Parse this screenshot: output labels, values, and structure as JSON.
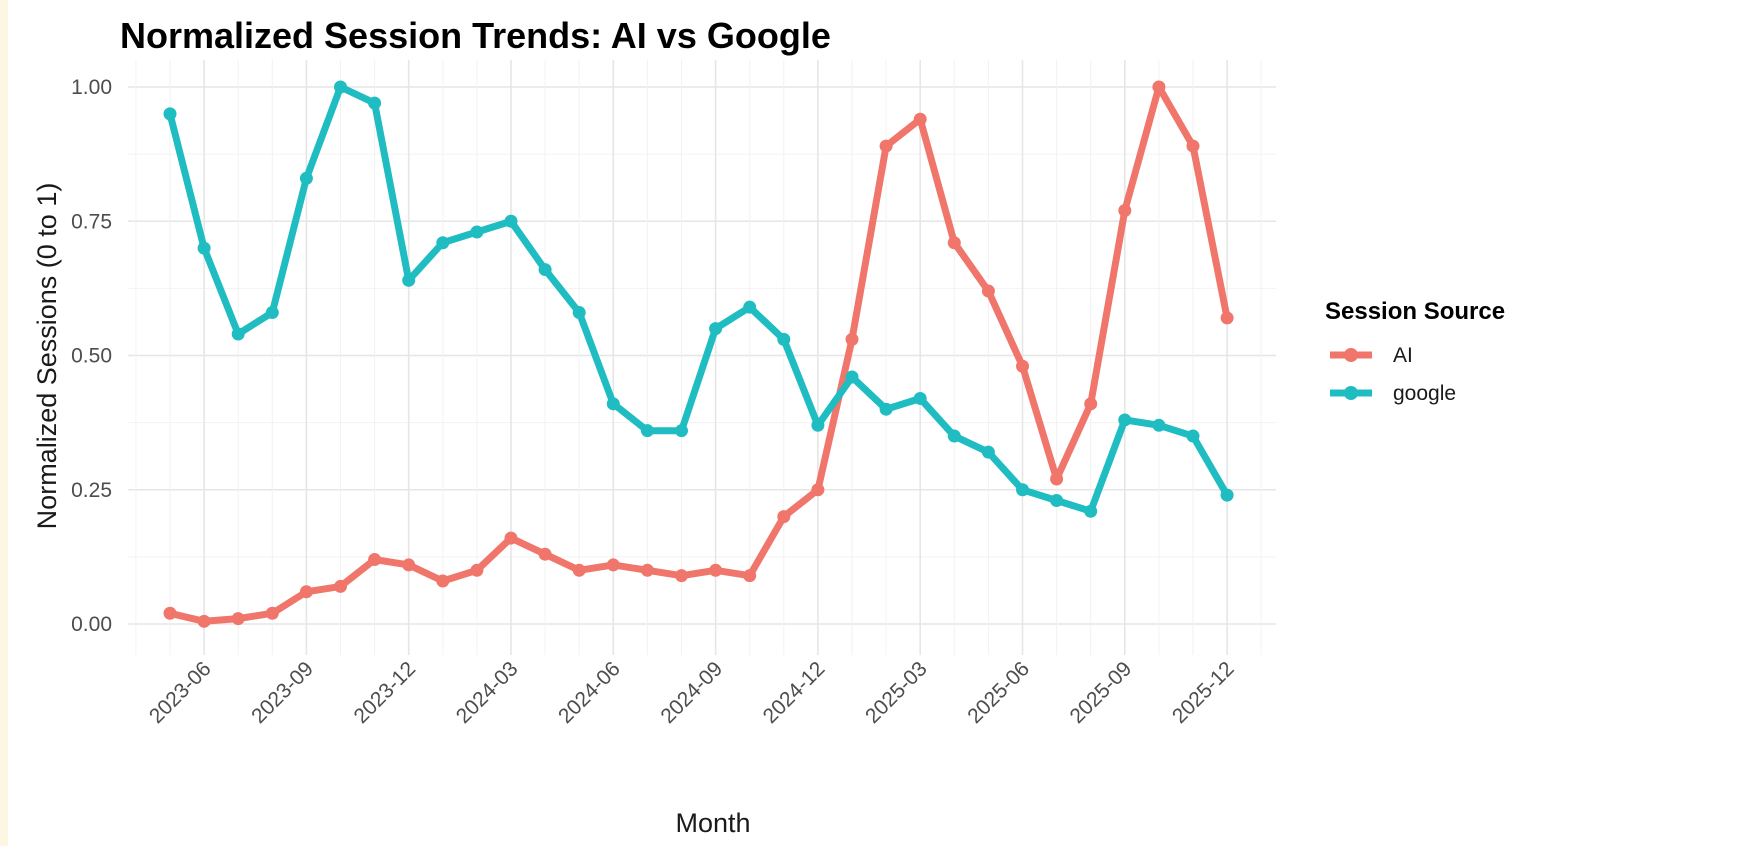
{
  "colors": {
    "ai": "#F0766B",
    "google": "#1FBDC2"
  },
  "chart_data": {
    "type": "line",
    "title": "Normalized Session Trends: AI vs Google",
    "xlabel": "Month",
    "ylabel": "Normalized Sessions (0 to 1)",
    "ylim": [
      0,
      1
    ],
    "y_ticks": [
      "0.00",
      "0.25",
      "0.50",
      "0.75",
      "1.00"
    ],
    "x_ticks": [
      "2023-06",
      "2023-09",
      "2023-12",
      "2024-03",
      "2024-06",
      "2024-09",
      "2024-12",
      "2025-03",
      "2025-06",
      "2025-09",
      "2025-12"
    ],
    "grid": true,
    "legend": {
      "title": "Session Source",
      "placement": "right"
    },
    "x": [
      "2023-05",
      "2023-06",
      "2023-07",
      "2023-08",
      "2023-09",
      "2023-10",
      "2023-11",
      "2023-12",
      "2024-01",
      "2024-02",
      "2024-03",
      "2024-04",
      "2024-05",
      "2024-06",
      "2024-07",
      "2024-08",
      "2024-09",
      "2024-10",
      "2024-11",
      "2024-12",
      "2025-01",
      "2025-02",
      "2025-03",
      "2025-04",
      "2025-05",
      "2025-06",
      "2025-07",
      "2025-08",
      "2025-09",
      "2025-10",
      "2025-11",
      "2025-12"
    ],
    "series": [
      {
        "name": "AI",
        "color": "#F0766B",
        "values": [
          0.02,
          0.005,
          0.01,
          0.02,
          0.06,
          0.07,
          0.12,
          0.11,
          0.08,
          0.1,
          0.16,
          0.13,
          0.1,
          0.11,
          0.1,
          0.09,
          0.1,
          0.09,
          0.2,
          0.25,
          0.53,
          0.89,
          0.94,
          0.71,
          0.62,
          0.48,
          0.27,
          0.41,
          0.77,
          1.0,
          0.89,
          0.57
        ]
      },
      {
        "name": "google",
        "color": "#1FBDC2",
        "values": [
          0.95,
          0.7,
          0.54,
          0.58,
          0.83,
          1.0,
          0.97,
          0.64,
          0.71,
          0.73,
          0.75,
          0.66,
          0.58,
          0.41,
          0.36,
          0.36,
          0.55,
          0.59,
          0.53,
          0.37,
          0.46,
          0.4,
          0.42,
          0.35,
          0.32,
          0.25,
          0.23,
          0.21,
          0.38,
          0.37,
          0.35,
          0.24
        ]
      }
    ]
  }
}
